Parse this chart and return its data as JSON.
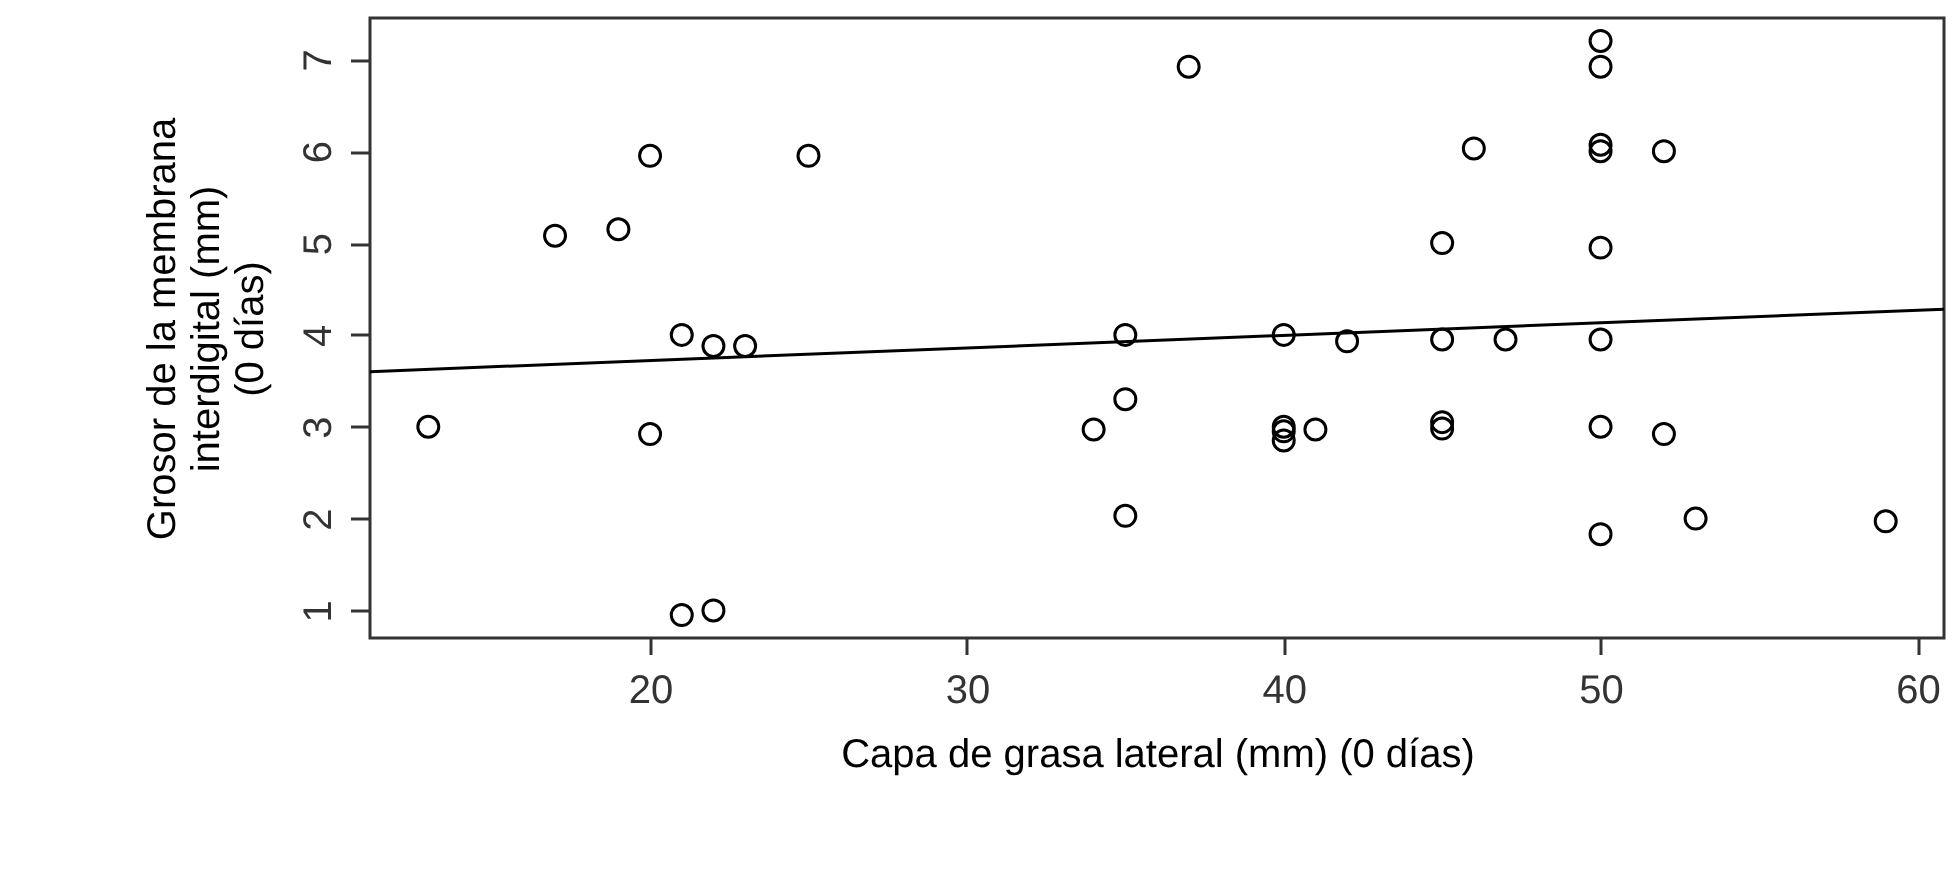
{
  "chart_data": {
    "type": "scatter",
    "xlabel": "Capa de grasa lateral (mm) (0 días)",
    "ylabel": "Grosor de la membrana\ninterdigital (mm)\n(0 días)",
    "xlim": [
      11.16,
      60.84
    ],
    "ylim": [
      0.7,
      7.45
    ],
    "xticks": [
      20,
      30,
      40,
      50,
      60
    ],
    "yticks": [
      1,
      2,
      3,
      4,
      5,
      6,
      7
    ],
    "grid": false,
    "series": [
      {
        "type": "scatter",
        "marker": "circle",
        "color": "#000000",
        "x": [
          13,
          17,
          19,
          20,
          20,
          21,
          22,
          23,
          21,
          22,
          25,
          37,
          34,
          35,
          35,
          35,
          40,
          40,
          40,
          40,
          41,
          42,
          45,
          45,
          45,
          45,
          46,
          47,
          50,
          50,
          50,
          50,
          50,
          50,
          50,
          50,
          52,
          52,
          53,
          59
        ],
        "values": [
          3,
          5.08,
          5.15,
          5.95,
          2.92,
          4.0,
          3.88,
          3.88,
          0.95,
          1.0,
          5.95,
          6.92,
          2.97,
          4.0,
          3.3,
          2.03,
          4.0,
          3.0,
          2.95,
          2.85,
          2.97,
          3.93,
          5.0,
          3.95,
          3.05,
          2.98,
          6.03,
          3.95,
          7.2,
          6.92,
          6.07,
          6.0,
          4.95,
          3.95,
          3.0,
          1.83,
          6.0,
          2.92,
          2.0,
          1.97
        ]
      },
      {
        "type": "line",
        "color": "#000000",
        "x": [
          11.16,
          60.84
        ],
        "values": [
          3.6,
          4.28
        ]
      }
    ]
  }
}
